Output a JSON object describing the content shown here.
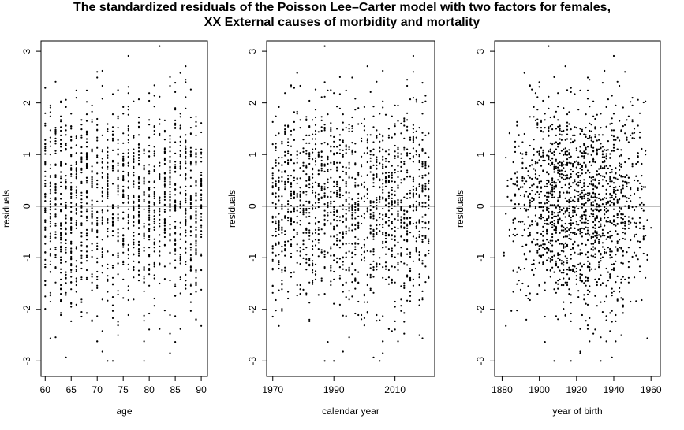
{
  "title_line1": "The standardized residuals of the Poisson Lee–Carter model with two factors for females,",
  "title_line2": "XX External causes of morbidity and mortality",
  "colors": {
    "points": "#000000",
    "axes": "#000000",
    "background": "#ffffff"
  },
  "chart_data": [
    {
      "type": "scatter",
      "xlabel": "age",
      "ylabel": "residuals",
      "xlim": [
        59.2,
        91.2
      ],
      "ylim": [
        -3.3,
        3.2
      ],
      "xticks": [
        60,
        65,
        70,
        75,
        80,
        85,
        90
      ],
      "yticks": [
        -3,
        -2,
        -1,
        0,
        1,
        2,
        3
      ],
      "reference_line_y": 0,
      "grid": false,
      "x_domain": [
        60,
        90
      ],
      "n_points": 1600
    },
    {
      "type": "scatter",
      "xlabel": "calendar year",
      "ylabel": "residuals",
      "xlim": [
        1968,
        2023
      ],
      "ylim": [
        -3.3,
        3.2
      ],
      "xticks": [
        1970,
        1990,
        2010
      ],
      "yticks": [
        -3,
        -2,
        -1,
        0,
        1,
        2,
        3
      ],
      "reference_line_y": 0,
      "grid": false,
      "x_domain": [
        1970,
        2021
      ],
      "n_points": 1600
    },
    {
      "type": "scatter",
      "xlabel": "year of birth",
      "ylabel": "residuals",
      "xlim": [
        1876,
        1965
      ],
      "ylim": [
        -3.3,
        3.2
      ],
      "xticks": [
        1880,
        1900,
        1920,
        1940,
        1960
      ],
      "yticks": [
        -3,
        -2,
        -1,
        0,
        1,
        2,
        3
      ],
      "reference_line_y": 0,
      "grid": false,
      "x_domain": [
        1880,
        1961
      ],
      "n_points": 1600
    }
  ]
}
